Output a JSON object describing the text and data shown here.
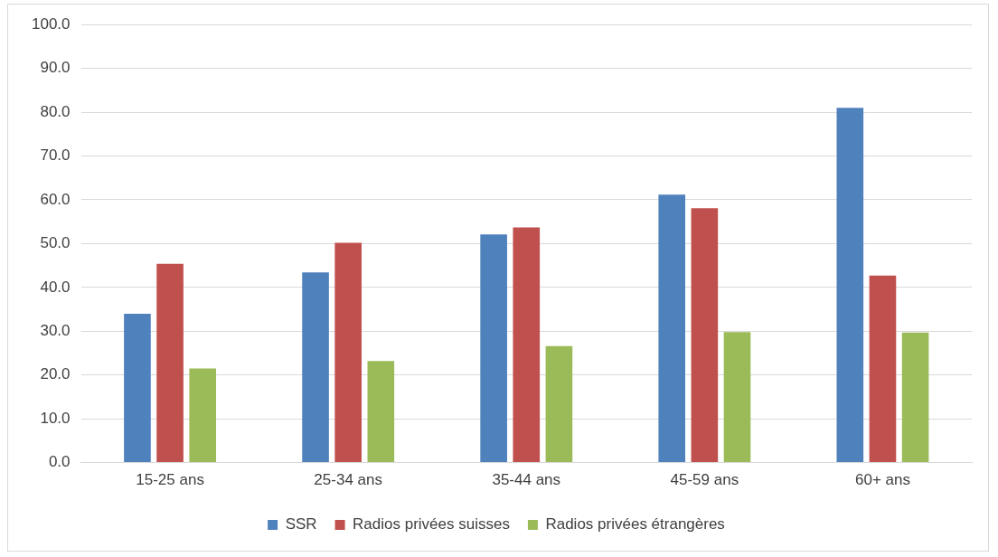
{
  "chart_data": {
    "type": "bar",
    "categories": [
      "15-25 ans",
      "25-34 ans",
      "35-44 ans",
      "45-59 ans",
      "60+ ans"
    ],
    "series": [
      {
        "name": "SSR",
        "color": "#4f81bd",
        "values": [
          34.0,
          43.4,
          52.1,
          61.2,
          81.0
        ]
      },
      {
        "name": "Radios privées suisses",
        "color": "#c0504d",
        "values": [
          45.4,
          50.2,
          53.7,
          58.1,
          42.7
        ]
      },
      {
        "name": "Radios privées étrangères",
        "color": "#9bbb59",
        "values": [
          21.5,
          23.2,
          26.6,
          29.8,
          29.7
        ]
      }
    ],
    "ylim": [
      0,
      100
    ],
    "yticks": [
      {
        "value": 0,
        "label": "0.0"
      },
      {
        "value": 10,
        "label": "10.0"
      },
      {
        "value": 20,
        "label": "20.0"
      },
      {
        "value": 30,
        "label": "30.0"
      },
      {
        "value": 40,
        "label": "40.0"
      },
      {
        "value": 50,
        "label": "50.0"
      },
      {
        "value": 60,
        "label": "60.0"
      },
      {
        "value": 70,
        "label": "70.0"
      },
      {
        "value": 80,
        "label": "80.0"
      },
      {
        "value": 90,
        "label": "90.0"
      },
      {
        "value": 100,
        "label": "100.0"
      }
    ],
    "grid": "y",
    "legend": "bottom"
  }
}
